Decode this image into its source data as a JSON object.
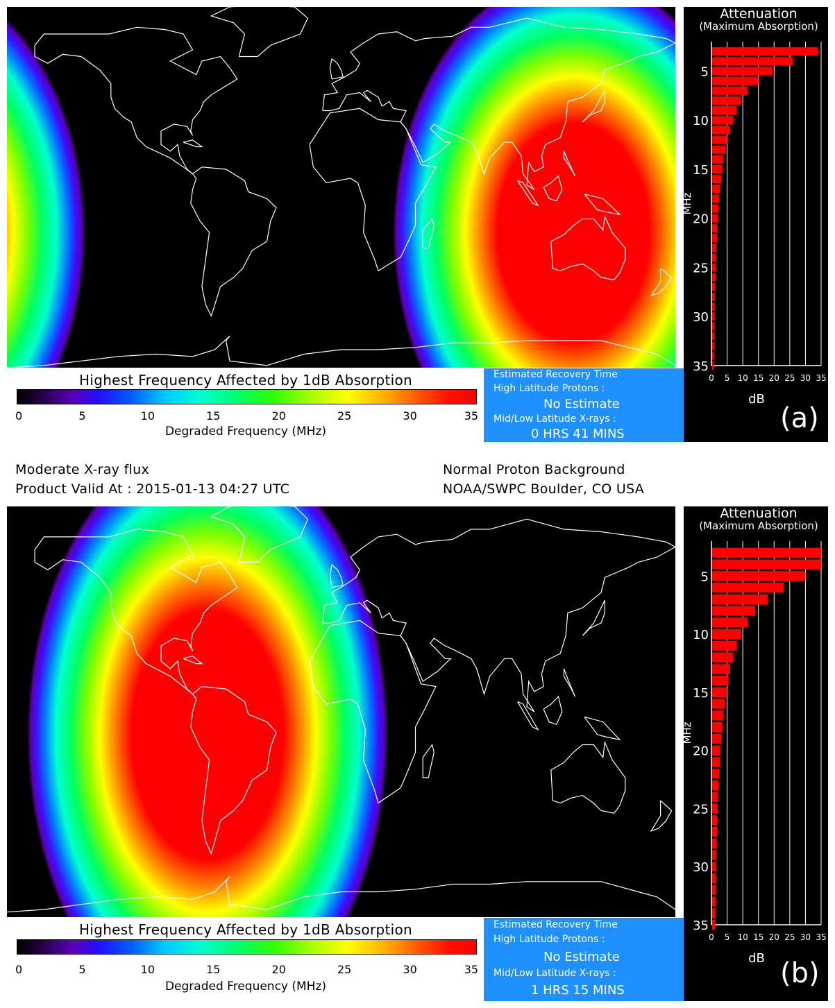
{
  "panels": [
    {
      "label": "(a)",
      "legend_title": "Highest Frequency Affected by 1dB Absorption",
      "colorbar_ticks": [
        "0",
        "5",
        "10",
        "15",
        "20",
        "25",
        "30",
        "35"
      ],
      "colorbar_xlabel": "Degraded Frequency (MHz)",
      "recovery": {
        "title": "Estimated Recovery Time",
        "high_lat_label": "High Latitude Protons :",
        "high_lat_value": "No Estimate",
        "mid_low_label": "Mid/Low Latitude X-rays :",
        "mid_low_value": "0 HRS 41 MINS"
      },
      "absorption_center": {
        "lon": 125,
        "lat": -18
      },
      "chart_data": {
        "type": "bar",
        "orientation": "horizontal",
        "title": "Attenuation",
        "subtitle": "(Maximum Absorption)",
        "ylabel": "MHz",
        "xlabel": "dB",
        "ylim": [
          2,
          35
        ],
        "xlim": [
          0,
          35
        ],
        "y_ticks": [
          5,
          10,
          15,
          20,
          25,
          30,
          35
        ],
        "x_ticks": [
          0,
          5,
          10,
          15,
          20,
          25,
          30,
          35
        ],
        "frequencies": [
          3,
          4,
          5,
          6,
          7,
          8,
          9,
          10,
          11,
          12,
          13,
          14,
          15,
          16,
          17,
          18,
          19,
          20,
          21,
          22,
          23,
          24,
          25,
          26,
          27,
          28,
          29,
          30,
          31,
          32,
          33,
          34,
          35
        ],
        "values": [
          34,
          26,
          19.5,
          15,
          11.5,
          9.5,
          8,
          7,
          6,
          5,
          4.5,
          3.9,
          3.5,
          3.1,
          2.8,
          2.5,
          2.3,
          2.1,
          1.9,
          1.8,
          1.6,
          1.5,
          1.4,
          1.3,
          1.2,
          1.1,
          1.05,
          1,
          0.95,
          0.9,
          0.85,
          0.8,
          0.75
        ]
      }
    },
    {
      "label": "(b)",
      "legend_title": "Highest Frequency Affected by 1dB Absorption",
      "colorbar_ticks": [
        "0",
        "5",
        "10",
        "15",
        "20",
        "25",
        "30",
        "35"
      ],
      "colorbar_xlabel": "Degraded Frequency (MHz)",
      "recovery": {
        "title": "Estimated Recovery Time",
        "high_lat_label": "High Latitude Protons :",
        "high_lat_value": "No Estimate",
        "mid_low_label": "Mid/Low Latitude X-rays :",
        "mid_low_value": "1 HRS 15 MINS"
      },
      "absorption_center": {
        "lon": -72,
        "lat": -8
      },
      "chart_data": {
        "type": "bar",
        "orientation": "horizontal",
        "title": "Attenuation",
        "subtitle": "(Maximum Absorption)",
        "ylabel": "MHz",
        "xlabel": "dB",
        "ylim": [
          2,
          35
        ],
        "xlim": [
          0,
          35
        ],
        "y_ticks": [
          5,
          10,
          15,
          20,
          25,
          30,
          35
        ],
        "x_ticks": [
          0,
          5,
          10,
          15,
          20,
          25,
          30,
          35
        ],
        "frequencies": [
          3,
          4,
          5,
          6,
          7,
          8,
          9,
          10,
          11,
          12,
          13,
          14,
          15,
          16,
          17,
          18,
          19,
          20,
          21,
          22,
          23,
          24,
          25,
          26,
          27,
          28,
          29,
          30,
          31,
          32,
          33,
          34,
          35
        ],
        "values": [
          35,
          35,
          30,
          23,
          18,
          14,
          11.5,
          9.5,
          8,
          7,
          6,
          5.4,
          4.8,
          4.3,
          3.9,
          3.5,
          3.2,
          2.9,
          2.7,
          2.5,
          2.3,
          2.1,
          2,
          1.9,
          1.8,
          1.7,
          1.6,
          1.5,
          1.4,
          1.35,
          1.3,
          1.25,
          1.2
        ]
      }
    }
  ],
  "status": {
    "xray": "Moderate X-ray flux",
    "valid_at": "Product Valid At : 2015-01-13 04:27 UTC",
    "proton": "Normal Proton Background",
    "source": "NOAA/SWPC Boulder, CO USA"
  },
  "colors": {
    "map_background": "#000000",
    "coastline": "#ffffff",
    "bar": "#ff0000",
    "recovery_box": "#1e90ff"
  }
}
